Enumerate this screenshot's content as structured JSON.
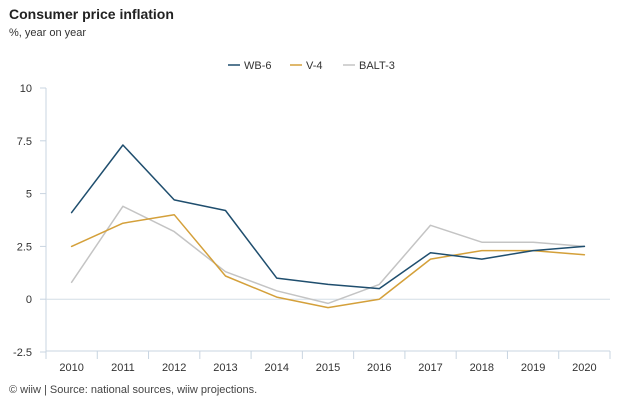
{
  "header": {
    "title": "Consumer price inflation",
    "subtitle": "%, year on year"
  },
  "footer": {
    "source": "© wiiw | Source: national sources, wiiw projections."
  },
  "chart_data": {
    "type": "line",
    "title": "Consumer price inflation",
    "subtitle": "%, year on year",
    "xlabel": "",
    "ylabel": "",
    "x": [
      "2010",
      "2011",
      "2012",
      "2013",
      "2014",
      "2015",
      "2016",
      "2017",
      "2018",
      "2019",
      "2020"
    ],
    "ylim": [
      -2.5,
      10
    ],
    "yticks": [
      -2.5,
      0,
      2.5,
      5,
      7.5,
      10
    ],
    "ytick_labels": [
      "-2.5",
      "0",
      "2.5",
      "5",
      "7.5",
      "10"
    ],
    "grid": false,
    "legend_position": "top-center",
    "series": [
      {
        "name": "WB-6",
        "color": "#1f4e6e",
        "values": [
          4.1,
          7.3,
          4.7,
          4.2,
          1.0,
          0.7,
          0.5,
          2.2,
          1.9,
          2.3,
          2.5
        ]
      },
      {
        "name": "V-4",
        "color": "#d4a03a",
        "values": [
          2.5,
          3.6,
          4.0,
          1.1,
          0.1,
          -0.4,
          0.0,
          1.9,
          2.3,
          2.3,
          2.1
        ]
      },
      {
        "name": "BALT-3",
        "color": "#c4c4c4",
        "values": [
          0.8,
          4.4,
          3.2,
          1.3,
          0.4,
          -0.2,
          0.7,
          3.5,
          2.7,
          2.7,
          2.5
        ]
      }
    ]
  }
}
